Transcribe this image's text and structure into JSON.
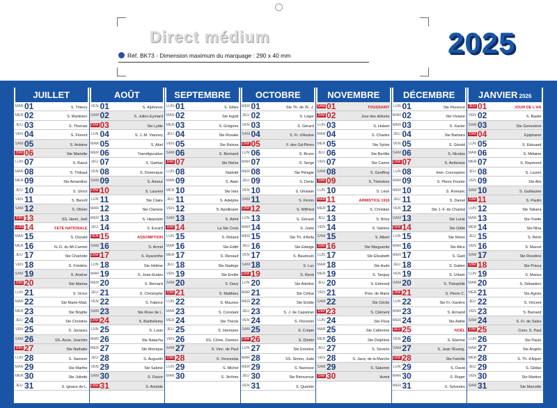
{
  "header": {
    "brand": "Direct médium",
    "ref_text": "Réf. BK73 - Dimension maximum du marquage : 290 x 40 mm",
    "year": "2025"
  },
  "months": [
    {
      "name": "JUILLET",
      "suffix": ""
    },
    {
      "name": "AOÛT",
      "suffix": ""
    },
    {
      "name": "SEPTEMBRE",
      "suffix": ""
    },
    {
      "name": "OCTOBRE",
      "suffix": ""
    },
    {
      "name": "NOVEMBRE",
      "suffix": ""
    },
    {
      "name": "DÉCEMBRE",
      "suffix": ""
    },
    {
      "name": "JANVIER",
      "suffix": "2026"
    }
  ],
  "columns": [
    {
      "days": [
        [
          "MAR",
          "01",
          "S. Thierry"
        ],
        [
          "MER",
          "02",
          "S. Martinien"
        ],
        [
          "JEU",
          "03",
          "S. Thomas"
        ],
        [
          "VEN",
          "04",
          "S. Florent"
        ],
        [
          "SAM",
          "05",
          "S. Antoine"
        ],
        [
          "DIM",
          "06",
          "Ste Mariette"
        ],
        [
          "LUN",
          "07",
          "S. Raoul"
        ],
        [
          "MAR",
          "08",
          "S. Thibaut"
        ],
        [
          "MER",
          "09",
          "Ste Amandine"
        ],
        [
          "JEU",
          "10",
          "S. Ulrich"
        ],
        [
          "VEN",
          "11",
          "S. Benoît"
        ],
        [
          "SAM",
          "12",
          "S. Olivier"
        ],
        [
          "DIM",
          "13",
          "SS. Henri, Joël"
        ],
        [
          "LUN",
          "14",
          "FETE NATIONALE"
        ],
        [
          "MAR",
          "15",
          "S. Donald"
        ],
        [
          "MER",
          "16",
          "N.-D. du Mt-Carmel"
        ],
        [
          "JEU",
          "17",
          "Ste Charlotte"
        ],
        [
          "VEN",
          "18",
          "S. Frédéric"
        ],
        [
          "SAM",
          "19",
          "S. Arsène"
        ],
        [
          "DIM",
          "20",
          "Ste Marina"
        ],
        [
          "LUN",
          "21",
          "S. Victor"
        ],
        [
          "MAR",
          "22",
          "Ste Marie-Mad."
        ],
        [
          "MER",
          "23",
          "Ste Brigitte"
        ],
        [
          "JEU",
          "24",
          "Ste Christine"
        ],
        [
          "VEN",
          "25",
          "S. Jacques"
        ],
        [
          "SAM",
          "26",
          "SS. Anne, Joachim"
        ],
        [
          "DIM",
          "27",
          "Ste Nathalie"
        ],
        [
          "LUN",
          "28",
          "S. Samson"
        ],
        [
          "MAR",
          "29",
          "Ste Marthe"
        ],
        [
          "MER",
          "30",
          "Ste Juliette"
        ],
        [
          "JEU",
          "31",
          "S. Ignace de L."
        ]
      ]
    },
    {
      "days": [
        [
          "VEN",
          "01",
          "S. Alphonse"
        ],
        [
          "SAM",
          "02",
          "S. Julien Eymard"
        ],
        [
          "DIM",
          "03",
          "Ste Lydie"
        ],
        [
          "LUN",
          "04",
          "S. J.-M. Vianney"
        ],
        [
          "MAR",
          "05",
          "S. Abel"
        ],
        [
          "MER",
          "06",
          "Transfiguration"
        ],
        [
          "JEU",
          "07",
          "S. Gaétan"
        ],
        [
          "VEN",
          "08",
          "S. Dominique"
        ],
        [
          "SAM",
          "09",
          "S. Amour"
        ],
        [
          "DIM",
          "10",
          "S. Laurent"
        ],
        [
          "LUN",
          "11",
          "Ste Claire"
        ],
        [
          "MAR",
          "12",
          "Ste Clarisse"
        ],
        [
          "MER",
          "13",
          "S. Hippolyte"
        ],
        [
          "JEU",
          "14",
          "S. Evrard"
        ],
        [
          "VEN",
          "15",
          "ASSOMPTION"
        ],
        [
          "SAM",
          "16",
          "S. Armel"
        ],
        [
          "DIM",
          "17",
          "S. Hyacinthe"
        ],
        [
          "LUN",
          "18",
          "Ste Hélène"
        ],
        [
          "MAR",
          "19",
          "S. Jean-Eudes"
        ],
        [
          "MER",
          "20",
          "S. Bernard"
        ],
        [
          "JEU",
          "21",
          "S. Christophe"
        ],
        [
          "VEN",
          "22",
          "S. Fabrice"
        ],
        [
          "SAM",
          "23",
          "Ste Rose de L."
        ],
        [
          "DIM",
          "24",
          "S. Barthélemy"
        ],
        [
          "LUN",
          "25",
          "S. Louis"
        ],
        [
          "MAR",
          "26",
          "Ste Natacha"
        ],
        [
          "MER",
          "27",
          "Ste Monique"
        ],
        [
          "JEU",
          "28",
          "S. Augustin"
        ],
        [
          "VEN",
          "29",
          "Ste Sabine"
        ],
        [
          "SAM",
          "30",
          "S. Fiacre"
        ],
        [
          "DIM",
          "31",
          "S. Aristide"
        ]
      ]
    },
    {
      "days": [
        [
          "LUN",
          "01",
          "S. Gilles"
        ],
        [
          "MAR",
          "02",
          "Ste Ingrid"
        ],
        [
          "MER",
          "03",
          "S. Grégoire"
        ],
        [
          "JEU",
          "04",
          "Ste Rosalie"
        ],
        [
          "VEN",
          "05",
          "Ste Raïssa"
        ],
        [
          "SAM",
          "06",
          "S. Bertrand"
        ],
        [
          "DIM",
          "07",
          "Ste Reine"
        ],
        [
          "LUN",
          "08",
          "Nativité"
        ],
        [
          "MAR",
          "09",
          "S. Alain"
        ],
        [
          "MER",
          "10",
          "Ste Inès"
        ],
        [
          "JEU",
          "11",
          "S. Adelphe"
        ],
        [
          "VEN",
          "12",
          "S. Apollinaire"
        ],
        [
          "SAM",
          "13",
          "S. Aimé"
        ],
        [
          "DIM",
          "14",
          "La Ste Croix"
        ],
        [
          "LUN",
          "15",
          "S. Roland"
        ],
        [
          "MAR",
          "16",
          "Ste Edith"
        ],
        [
          "MER",
          "17",
          "S. Renaud"
        ],
        [
          "JEU",
          "18",
          "Ste Nadège"
        ],
        [
          "VEN",
          "19",
          "Ste Emilie"
        ],
        [
          "SAM",
          "20",
          "S. Davy"
        ],
        [
          "DIM",
          "21",
          "S. Matthieu"
        ],
        [
          "LUN",
          "22",
          "S. Maurice"
        ],
        [
          "MAR",
          "23",
          "S. Constant"
        ],
        [
          "MER",
          "24",
          "Ste Thècle"
        ],
        [
          "JEU",
          "25",
          "S. Hermann"
        ],
        [
          "VEN",
          "26",
          "SS. Côme, Damien"
        ],
        [
          "SAM",
          "27",
          "S. Vinc. de Paul"
        ],
        [
          "DIM",
          "28",
          "S. Venceslas"
        ],
        [
          "LUN",
          "29",
          "S. Michel"
        ],
        [
          "MAR",
          "30",
          "S. Jérôme"
        ]
      ]
    },
    {
      "days": [
        [
          "MER",
          "01",
          "Ste Th. de l'E. J."
        ],
        [
          "JEU",
          "02",
          "S. Léger"
        ],
        [
          "VEN",
          "03",
          "S. Gérard"
        ],
        [
          "SAM",
          "04",
          "S. Fr. d'Assise"
        ],
        [
          "DIM",
          "05",
          "F. des Gd-Pères"
        ],
        [
          "LUN",
          "06",
          "S. Bruno"
        ],
        [
          "MAR",
          "07",
          "S. Serge"
        ],
        [
          "MER",
          "08",
          "Ste Pélagie"
        ],
        [
          "JEU",
          "09",
          "S. Denis"
        ],
        [
          "VEN",
          "10",
          "S. Ghislain"
        ],
        [
          "SAM",
          "11",
          "S. Firmin"
        ],
        [
          "DIM",
          "12",
          "S. Wilfried"
        ],
        [
          "LUN",
          "13",
          "S. Géraud"
        ],
        [
          "MAR",
          "14",
          "S. Juste"
        ],
        [
          "MER",
          "15",
          "Ste Th. d'Avila"
        ],
        [
          "JEU",
          "16",
          "Ste Edwige"
        ],
        [
          "VEN",
          "17",
          "S. Baudouin"
        ],
        [
          "SAM",
          "18",
          "S. Luc"
        ],
        [
          "DIM",
          "19",
          "S. René"
        ],
        [
          "LUN",
          "20",
          "Ste Adeline"
        ],
        [
          "MAR",
          "21",
          "Ste Céline"
        ],
        [
          "MER",
          "22",
          "Ste Elodie"
        ],
        [
          "JEU",
          "23",
          "S. J. de Capistran"
        ],
        [
          "VEN",
          "24",
          "S. Florentin"
        ],
        [
          "SAM",
          "25",
          "S. Crépin"
        ],
        [
          "DIM",
          "26",
          "S. Dimitri"
        ],
        [
          "LUN",
          "27",
          "Ste Emeline"
        ],
        [
          "MAR",
          "28",
          "SS. Simon, Jude"
        ],
        [
          "MER",
          "29",
          "S. Narcisse"
        ],
        [
          "JEU",
          "30",
          "Ste Bienvenue"
        ],
        [
          "VEN",
          "31",
          "S. Quentin"
        ]
      ]
    },
    {
      "days": [
        [
          "SAM",
          "01",
          "TOUSSAINT"
        ],
        [
          "DIM",
          "02",
          "Jour des défunts"
        ],
        [
          "LUN",
          "03",
          "S. Hubert"
        ],
        [
          "MAR",
          "04",
          "S. Charles"
        ],
        [
          "MER",
          "05",
          "Ste Sylvie"
        ],
        [
          "JEU",
          "06",
          "Ste Bertille"
        ],
        [
          "VEN",
          "07",
          "Ste Carine"
        ],
        [
          "SAM",
          "08",
          "S. Geoffroy"
        ],
        [
          "DIM",
          "09",
          "S. Théodore"
        ],
        [
          "LUN",
          "10",
          "S. Léon"
        ],
        [
          "MAR",
          "11",
          "ARMISTICE 1918"
        ],
        [
          "MER",
          "12",
          "S. Christian"
        ],
        [
          "JEU",
          "13",
          "S. Brice"
        ],
        [
          "VEN",
          "14",
          "S. Sidoine"
        ],
        [
          "SAM",
          "15",
          "S. Albert"
        ],
        [
          "DIM",
          "16",
          "Ste Marguerite"
        ],
        [
          "LUN",
          "17",
          "Ste Elisabeth"
        ],
        [
          "MAR",
          "18",
          "Ste Aude"
        ],
        [
          "MER",
          "19",
          "S. Tanguy"
        ],
        [
          "JEU",
          "20",
          "S. Edmond"
        ],
        [
          "VEN",
          "21",
          "Prés. de Marie"
        ],
        [
          "SAM",
          "22",
          "Ste Cécile"
        ],
        [
          "DIM",
          "23",
          "S. Clément"
        ],
        [
          "LUN",
          "24",
          "Ste Flora"
        ],
        [
          "MAR",
          "25",
          "Ste Catherine"
        ],
        [
          "MER",
          "26",
          "Ste Delphine"
        ],
        [
          "JEU",
          "27",
          "S. Séverin"
        ],
        [
          "VEN",
          "28",
          "S. Jacq. de la Marche"
        ],
        [
          "SAM",
          "29",
          "S. Saturnin"
        ],
        [
          "DIM",
          "30",
          "Avent"
        ]
      ]
    },
    {
      "days": [
        [
          "LUN",
          "01",
          "Ste Florence"
        ],
        [
          "MAR",
          "02",
          "Ste Viviane"
        ],
        [
          "MER",
          "03",
          "S. Xavier"
        ],
        [
          "JEU",
          "04",
          "Ste Barbara"
        ],
        [
          "VEN",
          "05",
          "S. Gérald"
        ],
        [
          "SAM",
          "06",
          "S. Nicolas"
        ],
        [
          "DIM",
          "07",
          "S. Ambroise"
        ],
        [
          "LUN",
          "08",
          "Imm. Conception"
        ],
        [
          "MAR",
          "09",
          "S. Pierre Fourier"
        ],
        [
          "MER",
          "10",
          "S. Romaric"
        ],
        [
          "JEU",
          "11",
          "S. Daniel"
        ],
        [
          "VEN",
          "12",
          "Ste J.-F. de Chantal"
        ],
        [
          "SAM",
          "13",
          "Ste Lucie"
        ],
        [
          "DIM",
          "14",
          "Ste Odile"
        ],
        [
          "LUN",
          "15",
          "Ste Ninon"
        ],
        [
          "MAR",
          "16",
          "Ste Alice"
        ],
        [
          "MER",
          "17",
          "S. Gaël"
        ],
        [
          "JEU",
          "18",
          "S. Gatien"
        ],
        [
          "VEN",
          "19",
          "S. Urbain"
        ],
        [
          "SAM",
          "20",
          "S. Théophile"
        ],
        [
          "DIM",
          "21",
          "S. Pierre C."
        ],
        [
          "LUN",
          "22",
          "Ste Fr.-Xavière"
        ],
        [
          "MAR",
          "23",
          "S. Armand"
        ],
        [
          "MER",
          "24",
          "Ste Adèle"
        ],
        [
          "JEU",
          "25",
          "NOËL"
        ],
        [
          "VEN",
          "26",
          "S. Etienne"
        ],
        [
          "SAM",
          "27",
          "S. Jean l'Evang."
        ],
        [
          "DIM",
          "28",
          "Ste Famille"
        ],
        [
          "LUN",
          "29",
          "S. David"
        ],
        [
          "MAR",
          "30",
          "S. Roger"
        ],
        [
          "MER",
          "31",
          "S. Sylvestre"
        ]
      ]
    },
    {
      "days": [
        [
          "JEU",
          "01",
          "JOUR DE L'AN"
        ],
        [
          "VEN",
          "02",
          "S. Basile"
        ],
        [
          "SAM",
          "03",
          "Ste Geneviève"
        ],
        [
          "DIM",
          "04",
          "Epiphanie"
        ],
        [
          "LUN",
          "05",
          "S. Edouard"
        ],
        [
          "MAR",
          "06",
          "S. Mélaine"
        ],
        [
          "MER",
          "07",
          "S. Raymond"
        ],
        [
          "JEU",
          "08",
          "S. Lucien"
        ],
        [
          "VEN",
          "09",
          "Ste Alix"
        ],
        [
          "SAM",
          "10",
          "S. Guillaume"
        ],
        [
          "DIM",
          "11",
          "S. Paulin"
        ],
        [
          "LUN",
          "12",
          "Ste Tatiana"
        ],
        [
          "MAR",
          "13",
          "Ste Yvette"
        ],
        [
          "MER",
          "14",
          "Ste Nina"
        ],
        [
          "JEU",
          "15",
          "S. Rémi"
        ],
        [
          "VEN",
          "16",
          "S. Marcel"
        ],
        [
          "SAM",
          "17",
          "Ste Roseline"
        ],
        [
          "DIM",
          "18",
          "Ste Prisca"
        ],
        [
          "LUN",
          "19",
          "S. Marius"
        ],
        [
          "MAR",
          "20",
          "S. Sébastien"
        ],
        [
          "MER",
          "21",
          "Ste Agnès"
        ],
        [
          "JEU",
          "22",
          "S. Vincent"
        ],
        [
          "VEN",
          "23",
          "S. Barnard"
        ],
        [
          "SAM",
          "24",
          "S. Fr. de Sales"
        ],
        [
          "DIM",
          "25",
          "Conv. S. Paul"
        ],
        [
          "LUN",
          "26",
          "Ste Paule"
        ],
        [
          "MAR",
          "27",
          "Ste Angèle"
        ],
        [
          "MER",
          "28",
          "S. Th. d'Aquin"
        ],
        [
          "JEU",
          "29",
          "S. Gildas"
        ],
        [
          "VEN",
          "30",
          "Ste Martine"
        ],
        [
          "SAM",
          "31",
          "Ste Marcelle"
        ]
      ]
    }
  ],
  "holidays": [
    "14",
    "15",
    "TOUSSAINT",
    "ARMISTICE 1918",
    "NOËL",
    "JOUR DE L'AN"
  ],
  "colors": {
    "accent": "#1a55a5",
    "holiday": "#c8202c",
    "weekend": "#e8e8e8"
  }
}
